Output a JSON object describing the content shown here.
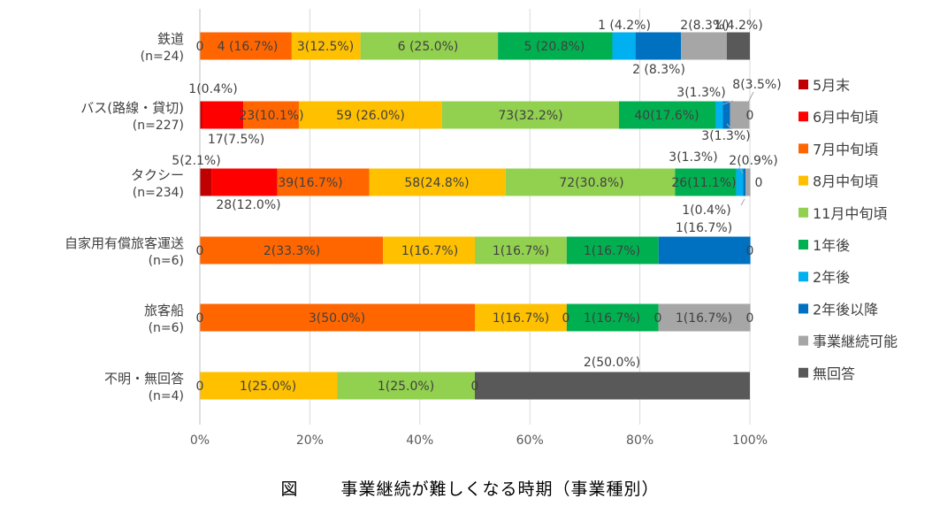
{
  "caption": {
    "figure_label": "図",
    "text": "事業継続が難しくなる時期（事業種別）"
  },
  "chart_data": {
    "type": "bar",
    "stacked": true,
    "orientation": "horizontal",
    "xlim": [
      0,
      100
    ],
    "x_ticks": [
      "0%",
      "20%",
      "40%",
      "60%",
      "80%",
      "100%"
    ],
    "grid": "vertical",
    "legend_position": "right",
    "categories": [
      {
        "name": "鉄道",
        "n": "(n=24)"
      },
      {
        "name": "バス(路線・貸切)",
        "n": "(n=227)"
      },
      {
        "name": "タクシー",
        "n": "(n=234)"
      },
      {
        "name": "自家用有償旅客運送",
        "n": "(n=6)"
      },
      {
        "name": "旅客船",
        "n": "(n=6)"
      },
      {
        "name": "不明・無回答",
        "n": "(n=4)"
      }
    ],
    "series": [
      {
        "name": "5月末",
        "color": "#c00000",
        "values": [
          0,
          0.4,
          2.1,
          0,
          0,
          0
        ]
      },
      {
        "name": "6月中旬頃",
        "color": "#ff0000",
        "values": [
          0,
          7.5,
          12.0,
          0,
          0,
          0
        ]
      },
      {
        "name": "7月中旬頃",
        "color": "#ff6600",
        "values": [
          16.7,
          10.1,
          16.7,
          33.3,
          50.0,
          0
        ]
      },
      {
        "name": "8月中旬頃",
        "color": "#ffc000",
        "values": [
          12.5,
          26.0,
          24.8,
          16.7,
          16.7,
          25.0
        ]
      },
      {
        "name": "11月中旬頃",
        "color": "#92d050",
        "values": [
          25.0,
          32.2,
          30.8,
          16.7,
          0,
          25.0
        ]
      },
      {
        "name": "1年後",
        "color": "#00b050",
        "values": [
          20.8,
          17.6,
          11.1,
          16.7,
          16.7,
          0
        ]
      },
      {
        "name": "2年後",
        "color": "#00b0f0",
        "values": [
          4.2,
          1.3,
          1.3,
          0,
          0,
          0
        ]
      },
      {
        "name": "2年後以降",
        "color": "#0070c0",
        "values": [
          8.3,
          1.3,
          0.4,
          16.7,
          0,
          0
        ]
      },
      {
        "name": "事業継続可能",
        "color": "#a6a6a6",
        "values": [
          8.3,
          3.5,
          0.9,
          0,
          16.7,
          0
        ]
      },
      {
        "name": "無回答",
        "color": "#595959",
        "values": [
          4.2,
          0,
          0,
          0,
          0,
          50.0
        ]
      }
    ],
    "data_labels": [
      [
        "0",
        "4 (16.7%)",
        "3(12.5%)",
        "6 (25.0%)",
        "5 (20.8%)",
        "1 (4.2%)",
        "2 (8.3%)",
        "2(8.3%)",
        "1(4.2%)"
      ],
      [
        "1(0.4%)",
        "17(7.5%)",
        "23(10.1%)",
        "59 (26.0%)",
        "73(32.2%)",
        "40(17.6%)",
        "3(1.3%)",
        "3(1.3%)",
        "8(3.5%)",
        "0"
      ],
      [
        "5(2.1%)",
        "28(12.0%)",
        "39(16.7%)",
        "58(24.8%)",
        "72(30.8%)",
        "26(11.1%)",
        "3(1.3%)",
        "1(0.4%)",
        "2(0.9%)",
        "0"
      ],
      [
        "0",
        "2(33.3%)",
        "1(16.7%)",
        "1(16.7%)",
        "1(16.7%)",
        "1(16.7%)",
        "0"
      ],
      [
        "0",
        "3(50.0%)",
        "1(16.7%)",
        "0",
        "1(16.7%)",
        "0",
        "1(16.7%)",
        "0"
      ],
      [
        "0",
        "1(25.0%)",
        "1(25.0%)",
        "0",
        "2(50.0%)"
      ]
    ]
  }
}
